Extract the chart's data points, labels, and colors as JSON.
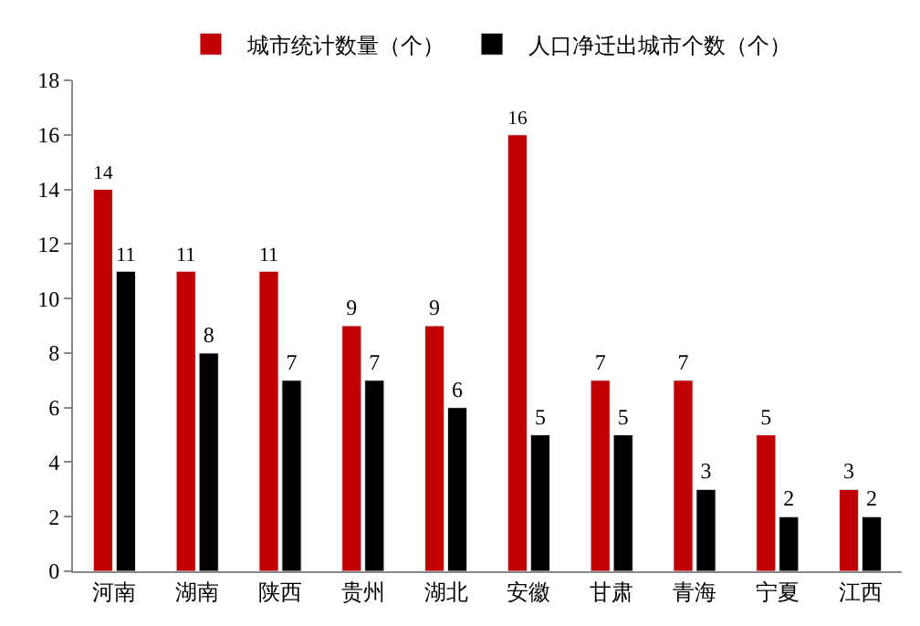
{
  "chart_data": {
    "type": "bar",
    "categories": [
      "河南",
      "湖南",
      "陕西",
      "贵州",
      "湖北",
      "安徽",
      "甘肃",
      "青海",
      "宁夏",
      "江西"
    ],
    "series": [
      {
        "name": "城市统计数量（个）",
        "color": "#c00000",
        "values": [
          14,
          11,
          11,
          9,
          9,
          16,
          7,
          7,
          5,
          3
        ]
      },
      {
        "name": "人口净迁出城市个数（个）",
        "color": "#000000",
        "values": [
          11,
          8,
          7,
          7,
          6,
          5,
          5,
          3,
          2,
          2
        ]
      }
    ],
    "ylim": [
      0,
      18
    ],
    "yticks": [
      0,
      2,
      4,
      6,
      8,
      10,
      12,
      14,
      16,
      18
    ],
    "data_labels": true,
    "legend": "top"
  }
}
